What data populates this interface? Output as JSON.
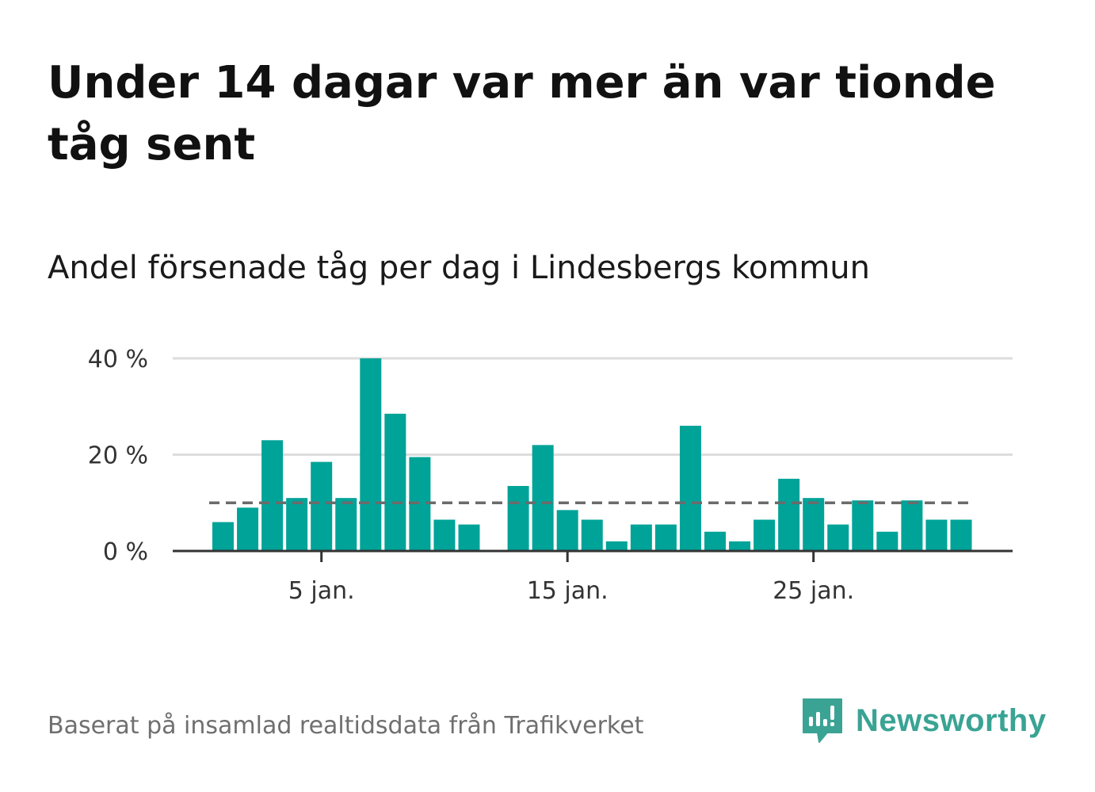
{
  "title": "Under 14 dagar var mer än var tionde tåg sent",
  "subtitle": "Andel försenade tåg per dag i Lindesbergs kommun",
  "source": "Baserat på insamlad realtidsdata från Trafikverket",
  "brand": {
    "label": "Newsworthy",
    "icon": "newsworthy-logo-icon",
    "color": "#3aa394"
  },
  "colors": {
    "bar": "#00a398",
    "grid": "#dddddd",
    "axis": "#333333",
    "reference": "#6b6b6b"
  },
  "chart_data": {
    "type": "bar",
    "x": [
      "2024-01-01",
      "2024-01-02",
      "2024-01-03",
      "2024-01-04",
      "2024-01-05",
      "2024-01-06",
      "2024-01-07",
      "2024-01-08",
      "2024-01-09",
      "2024-01-10",
      "2024-01-11",
      "2024-01-12",
      "2024-01-13",
      "2024-01-14",
      "2024-01-15",
      "2024-01-16",
      "2024-01-17",
      "2024-01-18",
      "2024-01-19",
      "2024-01-20",
      "2024-01-21",
      "2024-01-22",
      "2024-01-23",
      "2024-01-24",
      "2024-01-25",
      "2024-01-26",
      "2024-01-27",
      "2024-01-28",
      "2024-01-29",
      "2024-01-30",
      "2024-01-31"
    ],
    "values": [
      6,
      9,
      23,
      11,
      18.5,
      11,
      40,
      28.5,
      19.5,
      6.5,
      5.5,
      0,
      13.5,
      22,
      8.5,
      6.5,
      2,
      5.5,
      5.5,
      26,
      4,
      2,
      6.5,
      15,
      11,
      5.5,
      10.5,
      4,
      10.5,
      6.5,
      6.5
    ],
    "reference_line": 10,
    "ylim": [
      0,
      40
    ],
    "yticks": [
      0,
      20,
      40
    ],
    "ytick_labels": [
      "0 %",
      "20 %",
      "40 %"
    ],
    "xticks": [
      "2024-01-05",
      "2024-01-15",
      "2024-01-25"
    ],
    "xtick_labels": [
      "5 jan.",
      "15 jan.",
      "25 jan."
    ],
    "xlabel": "",
    "ylabel": "",
    "grid": true
  }
}
